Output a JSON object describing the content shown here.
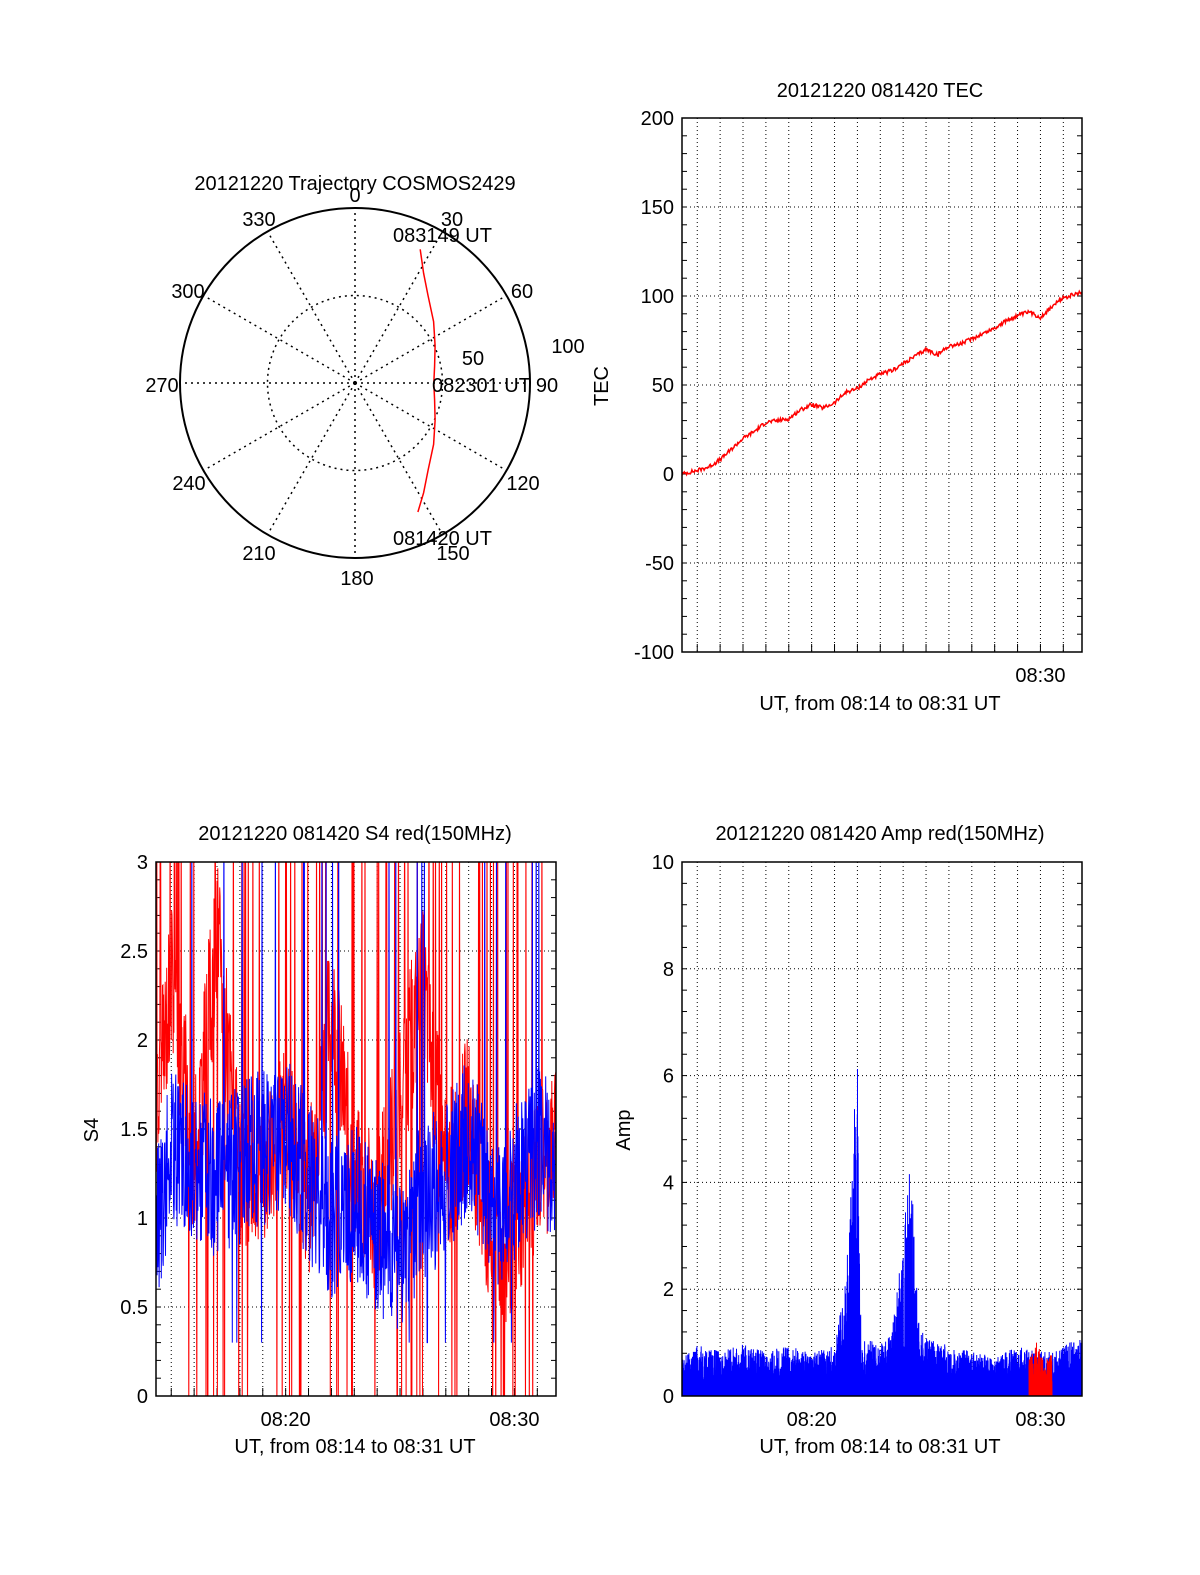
{
  "chart_data": [
    {
      "type": "polar",
      "title": "20121220 Trajectory COSMOS2429",
      "azimuth_labels": [
        "0",
        "30",
        "60",
        "90",
        "120",
        "150",
        "180",
        "210",
        "240",
        "270",
        "300",
        "330"
      ],
      "radial_ticks": [
        "50",
        "100"
      ],
      "rlim": [
        0,
        100
      ],
      "grid": true,
      "series": [
        {
          "color": "#ff0000",
          "azimuth": [
            154.0,
            148.0,
            140.0,
            128.0,
            115.0,
            102.0,
            90.0,
            78.0,
            65.0,
            52.0,
            40.0,
            32.0,
            26.0
          ],
          "radius": [
            82.0,
            74.0,
            65.0,
            57.0,
            50.5,
            46.5,
            45.0,
            46.5,
            50.5,
            57.0,
            65.0,
            74.0,
            85.0
          ]
        }
      ],
      "annotations": [
        {
          "text": "083149 UT",
          "azimuth": 26.0,
          "radius": 85.0
        },
        {
          "text": "082301 UT",
          "azimuth": 90.0,
          "radius": 45.0
        },
        {
          "text": "081420 UT",
          "azimuth": 154.0,
          "radius": 82.0
        }
      ]
    },
    {
      "type": "line",
      "title": "20121220 081420 TEC",
      "xlabel": "UT, from 08:14 to 08:31 UT",
      "ylabel": "TEC",
      "xlim": [
        "08:14:20",
        "08:31:49"
      ],
      "ylim": [
        -100,
        200
      ],
      "yticks": [
        "-100",
        "-50",
        "0",
        "50",
        "100",
        "150",
        "200"
      ],
      "xtick_labels": [
        {
          "label": "08:30",
          "time": "08:30:00"
        }
      ],
      "grid": true,
      "series": [
        {
          "color": "#ff0000",
          "x": [
            "08:14:20",
            "08:15:00",
            "08:15:30",
            "08:16:00",
            "08:16:30",
            "08:17:00",
            "08:17:30",
            "08:18:00",
            "08:18:30",
            "08:19:00",
            "08:19:30",
            "08:20:00",
            "08:20:30",
            "08:21:00",
            "08:21:30",
            "08:22:00",
            "08:22:30",
            "08:23:00",
            "08:23:30",
            "08:24:00",
            "08:24:30",
            "08:25:00",
            "08:25:30",
            "08:26:00",
            "08:26:30",
            "08:27:00",
            "08:27:30",
            "08:28:00",
            "08:28:30",
            "08:29:00",
            "08:29:30",
            "08:30:00",
            "08:30:30",
            "08:31:00",
            "08:31:49"
          ],
          "y": [
            0,
            2,
            4,
            8,
            14,
            20,
            24,
            29,
            30,
            31,
            36,
            39,
            37,
            40,
            46,
            48,
            53,
            56,
            58,
            62,
            66,
            70,
            67,
            72,
            73,
            76,
            79,
            82,
            86,
            89,
            91,
            88,
            94,
            99,
            102
          ]
        }
      ]
    },
    {
      "type": "line",
      "title": "20121220 081420 S4 red(150MHz)",
      "xlabel": "UT, from 08:14 to 08:31 UT",
      "ylabel": "S4",
      "xlim": [
        "08:14:20",
        "08:31:49"
      ],
      "ylim": [
        0,
        3
      ],
      "yticks": [
        "0",
        "0.5",
        "1",
        "1.5",
        "2",
        "2.5",
        "3"
      ],
      "xtick_labels": [
        {
          "label": "08:20",
          "time": "08:20:00"
        },
        {
          "label": "08:30",
          "time": "08:30:00"
        }
      ],
      "grid": true,
      "series": [
        {
          "color": "#ff0000",
          "x": [
            "08:14:20",
            "08:15:00",
            "08:16:00",
            "08:17:00",
            "08:18:00",
            "08:19:00",
            "08:20:00",
            "08:21:00",
            "08:22:00",
            "08:23:00",
            "08:24:00",
            "08:25:00",
            "08:26:00",
            "08:27:00",
            "08:28:00",
            "08:29:00",
            "08:30:00",
            "08:31:00",
            "08:31:49"
          ],
          "y": [
            1.5,
            2.4,
            1.3,
            2.6,
            1.2,
            1.3,
            1.6,
            1.1,
            2.2,
            1.2,
            1.0,
            1.7,
            2.3,
            1.2,
            1.6,
            0.8,
            0.9,
            1.3,
            1.4
          ]
        },
        {
          "color": "#0000ff",
          "x": [
            "08:14:20",
            "08:15:00",
            "08:16:00",
            "08:17:00",
            "08:18:00",
            "08:19:00",
            "08:20:00",
            "08:21:00",
            "08:22:00",
            "08:23:00",
            "08:24:00",
            "08:25:00",
            "08:26:00",
            "08:27:00",
            "08:28:00",
            "08:29:00",
            "08:30:00",
            "08:31:00",
            "08:31:49"
          ],
          "y": [
            0.9,
            1.4,
            1.3,
            1.2,
            1.3,
            1.4,
            1.5,
            1.2,
            1.0,
            1.1,
            0.9,
            0.8,
            1.1,
            1.2,
            1.5,
            1.0,
            1.2,
            1.4,
            1.3
          ]
        }
      ]
    },
    {
      "type": "line",
      "title": "20121220 081420 Amp red(150MHz)",
      "xlabel": "UT, from 08:14 to 08:31 UT",
      "ylabel": "Amp",
      "xlim": [
        "08:14:20",
        "08:31:49"
      ],
      "ylim": [
        0,
        10
      ],
      "yticks": [
        "0",
        "2",
        "4",
        "6",
        "8",
        "10"
      ],
      "xtick_labels": [
        {
          "label": "08:20",
          "time": "08:20:00"
        },
        {
          "label": "08:30",
          "time": "08:30:00"
        }
      ],
      "grid": true,
      "series": [
        {
          "color": "#0000ff",
          "x": [
            "08:14:20",
            "08:15:00",
            "08:16:00",
            "08:17:00",
            "08:18:00",
            "08:19:00",
            "08:20:00",
            "08:21:00",
            "08:21:30",
            "08:22:00",
            "08:22:10",
            "08:22:20",
            "08:23:00",
            "08:23:30",
            "08:24:00",
            "08:24:20",
            "08:24:40",
            "08:25:00",
            "08:26:00",
            "08:27:00",
            "08:28:00",
            "08:29:00",
            "08:30:00",
            "08:31:00",
            "08:31:49"
          ],
          "y": [
            0.6,
            0.8,
            0.7,
            0.8,
            0.7,
            0.8,
            0.7,
            0.8,
            1.8,
            5.4,
            0.7,
            0.9,
            0.8,
            1.0,
            2.5,
            3.7,
            1.2,
            0.9,
            0.8,
            0.7,
            0.6,
            0.8,
            0.7,
            0.8,
            0.9
          ]
        },
        {
          "color": "#ff0000",
          "x": [
            "08:29:30",
            "08:29:50",
            "08:30:10",
            "08:30:30"
          ],
          "y": [
            0.6,
            0.9,
            0.5,
            0.7
          ]
        }
      ]
    }
  ]
}
